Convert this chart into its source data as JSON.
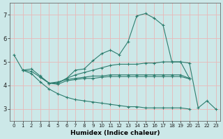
{
  "background_color": "#cce8e8",
  "grid_color": "#e8b8b8",
  "line_color": "#2e7d6e",
  "xlabel": "Humidex (Indice chaleur)",
  "ylim": [
    2.5,
    7.5
  ],
  "xlim": [
    -0.5,
    23.5
  ],
  "yticks": [
    3,
    4,
    5,
    6,
    7
  ],
  "xticks": [
    0,
    1,
    2,
    3,
    4,
    5,
    6,
    7,
    8,
    9,
    10,
    11,
    12,
    13,
    14,
    15,
    16,
    17,
    18,
    19,
    20,
    21,
    22,
    23
  ],
  "series": [
    [
      5.3,
      4.65,
      null,
      null,
      null,
      null,
      null,
      null,
      null,
      null,
      null,
      null,
      null,
      null,
      null,
      null,
      null,
      null,
      null,
      null,
      null,
      null,
      null,
      null
    ],
    [
      null,
      4.65,
      4.7,
      4.4,
      4.1,
      4.1,
      4.3,
      4.65,
      4.7,
      5.05,
      5.35,
      5.5,
      5.3,
      5.85,
      6.95,
      7.05,
      6.85,
      6.55,
      5.0,
      5.0,
      4.95,
      3.05,
      3.35,
      3.0
    ],
    [
      null,
      4.65,
      4.6,
      4.35,
      4.1,
      4.1,
      4.3,
      4.45,
      4.55,
      4.65,
      4.75,
      4.85,
      4.9,
      4.9,
      4.9,
      4.95,
      4.95,
      5.0,
      5.0,
      5.0,
      4.3,
      null,
      null,
      null
    ],
    [
      null,
      null,
      null,
      4.35,
      4.1,
      4.15,
      4.25,
      4.3,
      4.35,
      4.4,
      4.4,
      4.45,
      4.45,
      4.45,
      4.45,
      4.45,
      4.45,
      4.45,
      4.45,
      4.45,
      4.3,
      null,
      null,
      null
    ],
    [
      null,
      null,
      null,
      null,
      4.1,
      4.05,
      4.2,
      4.25,
      4.3,
      4.3,
      4.35,
      4.38,
      4.38,
      4.38,
      4.38,
      4.38,
      4.38,
      4.38,
      4.38,
      4.38,
      4.28,
      null,
      null,
      null
    ],
    [
      null,
      4.65,
      4.5,
      4.15,
      3.85,
      3.65,
      3.5,
      3.4,
      3.35,
      3.3,
      3.25,
      3.2,
      3.15,
      3.1,
      3.1,
      3.05,
      3.05,
      3.05,
      3.05,
      3.05,
      3.0,
      null,
      null,
      null
    ]
  ],
  "figsize": [
    3.2,
    2.0
  ],
  "dpi": 100
}
